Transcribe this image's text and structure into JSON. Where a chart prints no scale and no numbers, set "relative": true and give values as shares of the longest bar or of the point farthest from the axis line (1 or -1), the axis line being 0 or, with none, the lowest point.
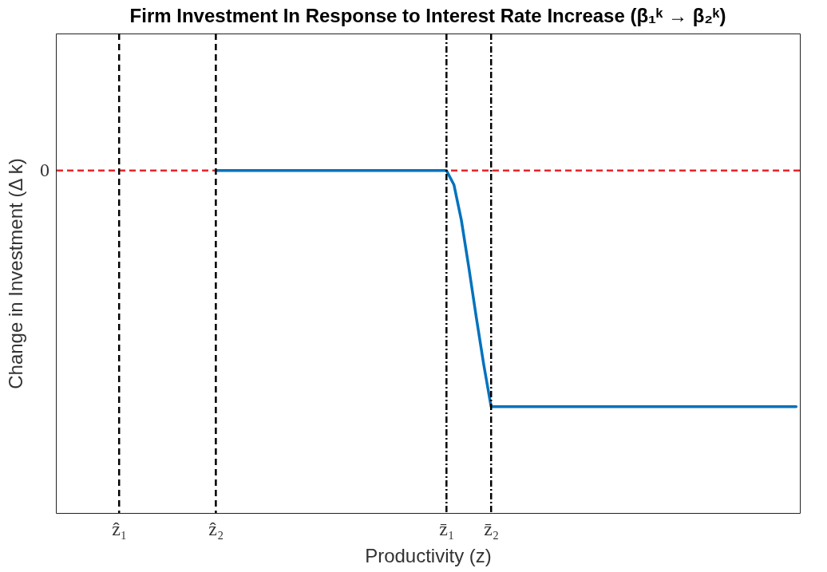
{
  "chart_data": {
    "type": "line",
    "title": "Firm Investment In Response to Interest Rate Increase (β₁ᵏ → β₂ᵏ)",
    "xlabel": "Productivity (z)",
    "ylabel": "Change in Investment (Δ k)",
    "relative": true,
    "categories": [
      null,
      null,
      null,
      null,
      null,
      null,
      null,
      null,
      "ẑ₁",
      null,
      null,
      null,
      null,
      null,
      null,
      null,
      null,
      null,
      null,
      null,
      null,
      "ẑ₂",
      null,
      null,
      null,
      null,
      null,
      null,
      null,
      null,
      null,
      null,
      null,
      null,
      null,
      null,
      null,
      null,
      null,
      null,
      null,
      null,
      null,
      null,
      null,
      null,
      null,
      null,
      null,
      null,
      null,
      null,
      "z̄₁",
      null,
      null,
      null,
      null,
      null,
      "z̄₂",
      null,
      null,
      null,
      null,
      null,
      null,
      null,
      null,
      null,
      null,
      null,
      null,
      null,
      null,
      null,
      null,
      null,
      null,
      null,
      null,
      null,
      null,
      null,
      null,
      null,
      null,
      null,
      null,
      null,
      null,
      null,
      null,
      null,
      null,
      null,
      null,
      null,
      null,
      null,
      null,
      null
    ],
    "ylim": [
      -1.45,
      0.58
    ],
    "series": [
      {
        "color": "#0072bd",
        "values": [
          null,
          null,
          null,
          null,
          null,
          null,
          null,
          null,
          null,
          null,
          null,
          null,
          null,
          null,
          null,
          null,
          null,
          null,
          null,
          null,
          null,
          0,
          0,
          0,
          0,
          0,
          0,
          0,
          0,
          0,
          0,
          0,
          0,
          0,
          0,
          0,
          0,
          0,
          0,
          0,
          0,
          0,
          0,
          0,
          0,
          0,
          0,
          0,
          0,
          0,
          0,
          0,
          0,
          -0.06,
          -0.21,
          -0.41,
          -0.62,
          -0.82,
          -1,
          -1,
          -1,
          -1,
          -1,
          -1,
          -1,
          -1,
          -1,
          -1,
          -1,
          -1,
          -1,
          -1,
          -1,
          -1,
          -1,
          -1,
          -1,
          -1,
          -1,
          -1,
          -1,
          -1,
          -1,
          -1,
          -1,
          -1,
          -1,
          -1,
          -1,
          -1,
          -1,
          -1,
          -1,
          -1,
          -1,
          -1,
          -1,
          -1,
          -1,
          -1
        ]
      }
    ],
    "ref_lines": [
      {
        "axis": "y",
        "value": 0,
        "label": "0",
        "color": "#e8262a",
        "line_style": "dashed"
      },
      {
        "axis": "x",
        "value": "ẑ₁",
        "color": "#000000",
        "line_style": "dashed"
      },
      {
        "axis": "x",
        "value": "ẑ₂",
        "color": "#000000",
        "line_style": "dashed"
      },
      {
        "axis": "x",
        "value": "z̄₁",
        "color": "#000000",
        "line_style": "dashdot"
      },
      {
        "axis": "x",
        "value": "z̄₂",
        "color": "#000000",
        "line_style": "dashdot"
      }
    ]
  }
}
